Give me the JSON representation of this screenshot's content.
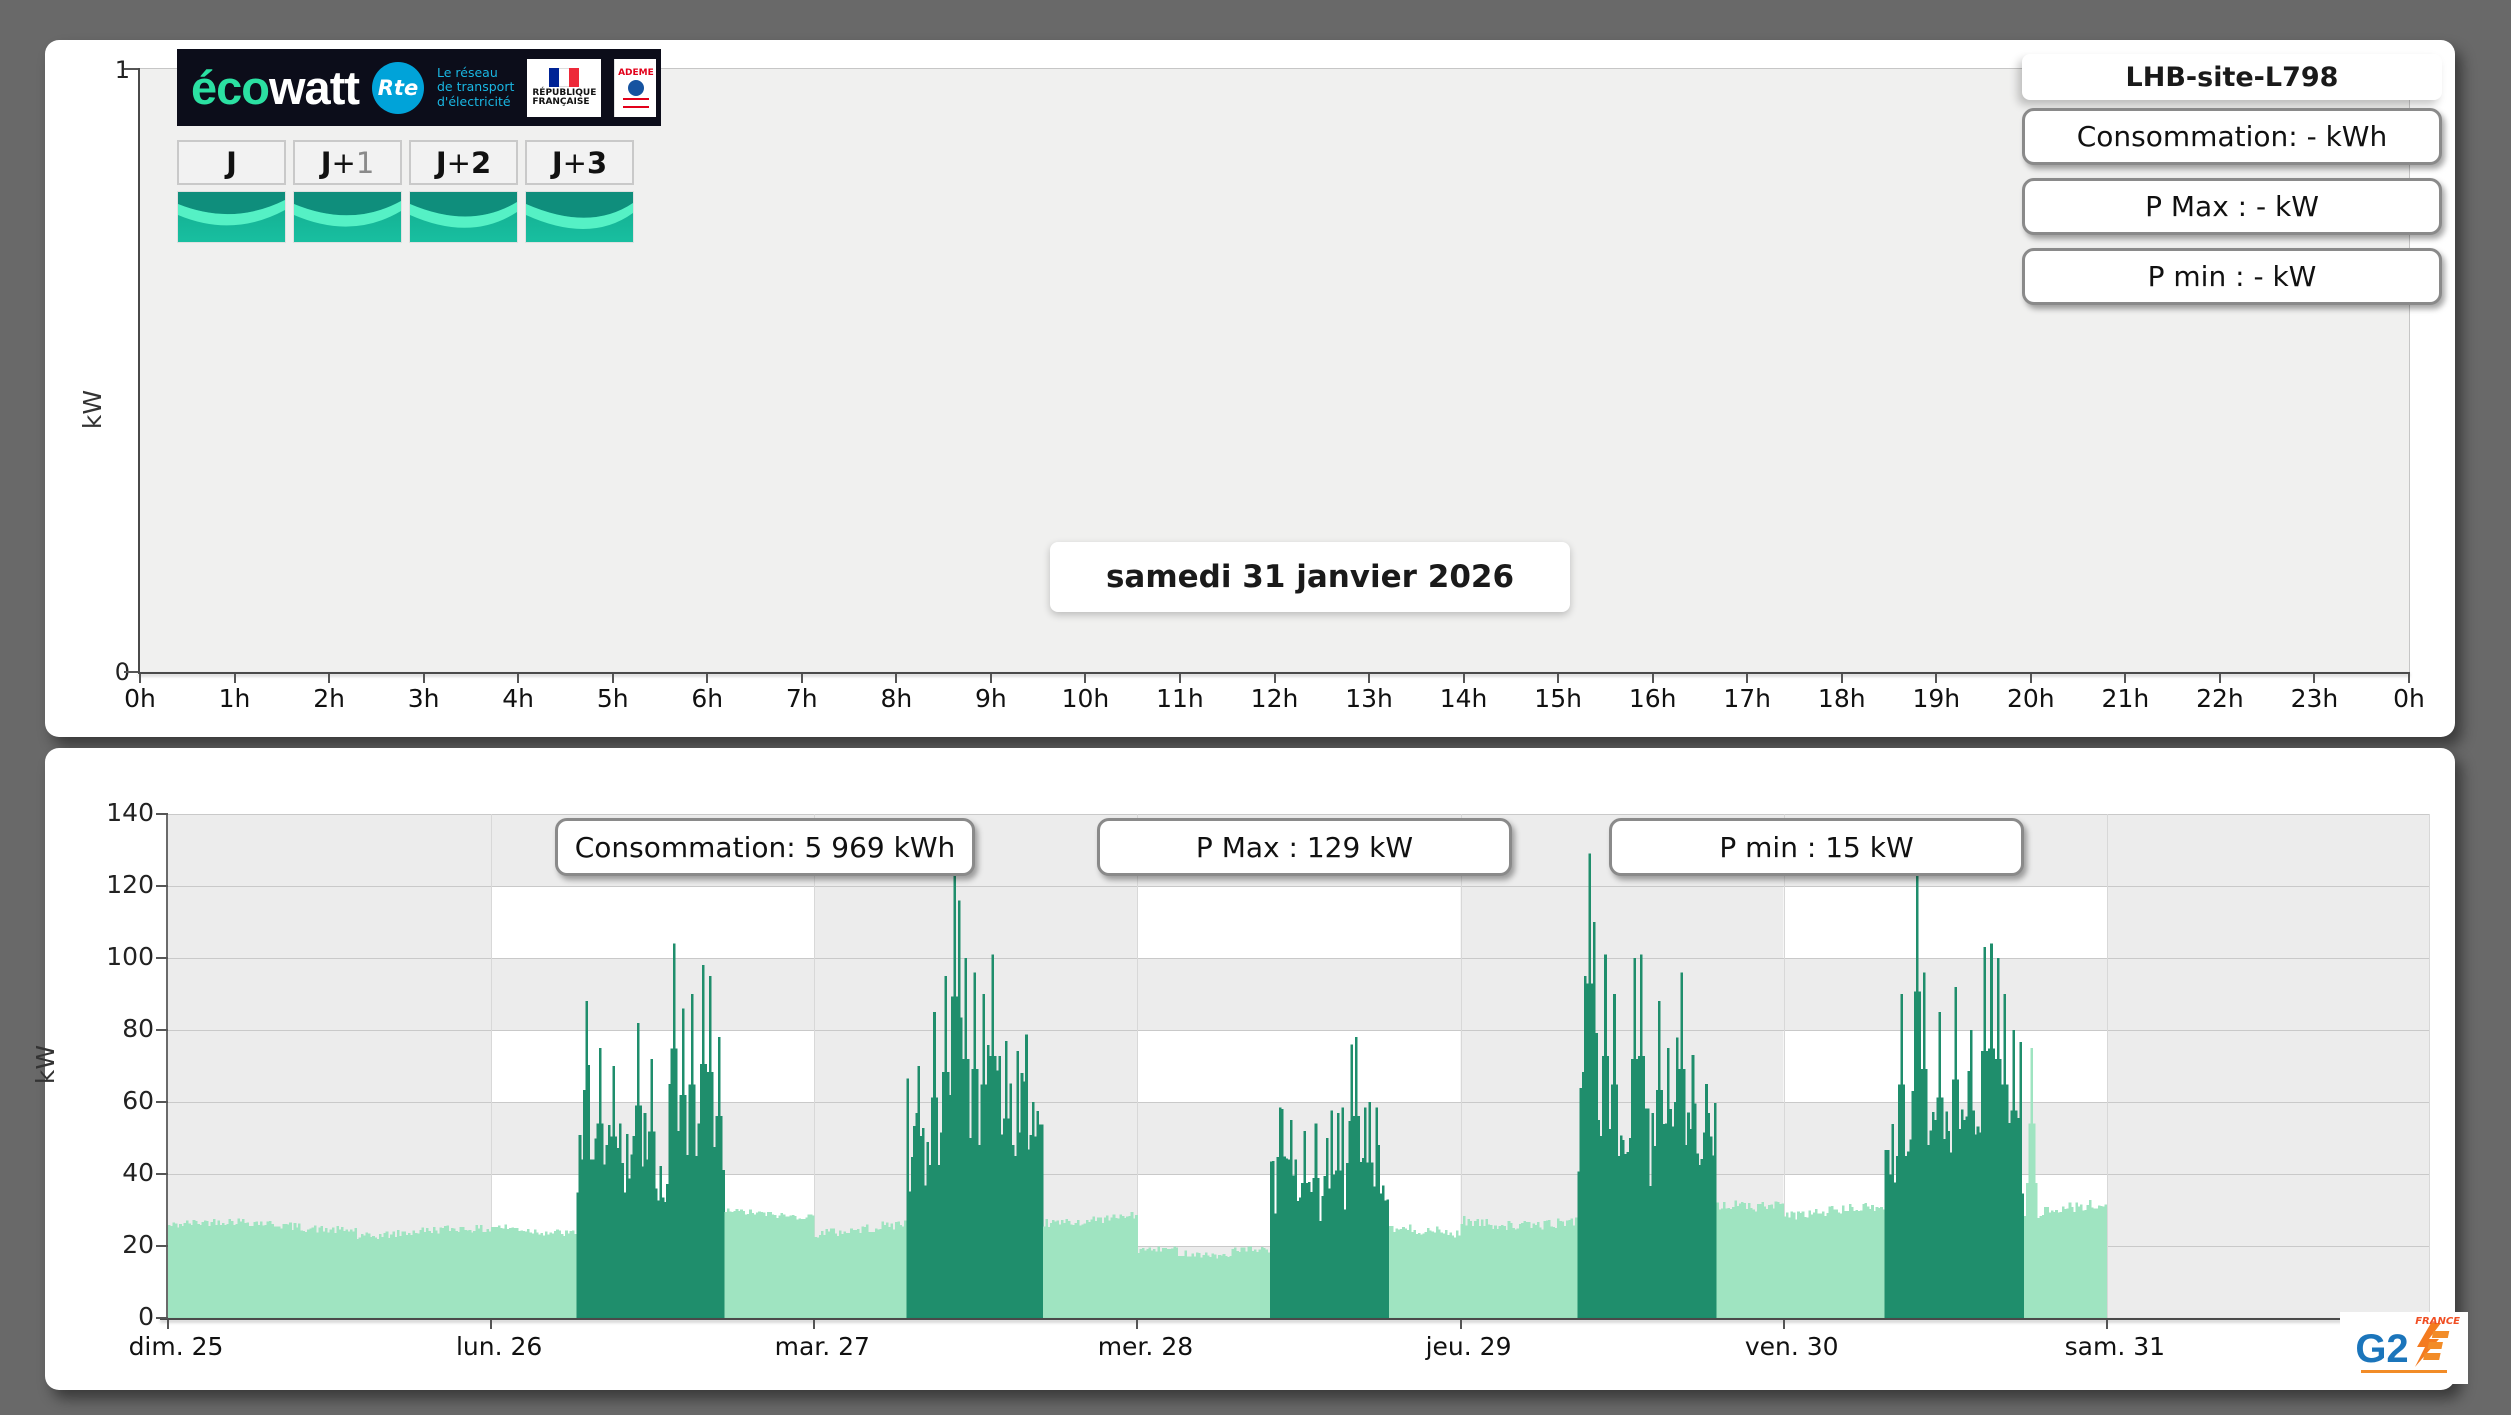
{
  "page": {
    "background": "#696969"
  },
  "top_chart": {
    "site_title": "LHB-site-L798",
    "stats": [
      "Consommation: - kWh",
      "P Max :  - kW",
      "P min : - kW"
    ],
    "date_label": "samedi 31 janvier 2026",
    "ylabel": "kW",
    "ytick_top": "1",
    "ytick_bottom": "0",
    "xticks": [
      "0h",
      "1h",
      "2h",
      "3h",
      "4h",
      "5h",
      "6h",
      "7h",
      "8h",
      "9h",
      "10h",
      "11h",
      "12h",
      "13h",
      "14h",
      "15h",
      "16h",
      "17h",
      "18h",
      "19h",
      "20h",
      "21h",
      "22h",
      "23h",
      "0h"
    ],
    "day_buttons": [
      {
        "prefix": "J",
        "plus": "",
        "num": "",
        "muted": false
      },
      {
        "prefix": "J",
        "plus": " + ",
        "num": "1",
        "muted": true
      },
      {
        "prefix": "J",
        "plus": " + ",
        "num": "2",
        "muted": false
      },
      {
        "prefix": "J",
        "plus": " + ",
        "num": "3",
        "muted": false
      }
    ],
    "logo": {
      "eco": "éco",
      "watt": "watt",
      "rte": "Rte",
      "tagline": [
        "Le réseau",
        "de transport",
        "d'électricité"
      ],
      "republique": [
        "RÉPUBLIQUE",
        "FRANÇAISE"
      ],
      "ademe": "ADEME"
    },
    "chart_data": {
      "type": "bar",
      "series": [],
      "title": "samedi 31 janvier 2026",
      "xlabel": "",
      "ylabel": "kW",
      "ylim": [
        0,
        1
      ],
      "yticks": [
        0,
        1
      ],
      "note_no_data": true
    }
  },
  "bottom_chart": {
    "stats": [
      "Consommation: 5 969 kWh",
      "P Max :  129 kW",
      "P min : 15 kW"
    ],
    "ylabel": "kW",
    "chart_data": {
      "type": "bar",
      "title": "",
      "xlabel": "",
      "ylabel": "kW",
      "ylim": [
        0,
        140
      ],
      "yticks": [
        0,
        20,
        40,
        60,
        80,
        100,
        120,
        140
      ],
      "x_day_labels": [
        "dim. 25",
        "lun. 26",
        "mar. 27",
        "mer. 28",
        "jeu. 29",
        "ven. 30",
        "sam. 31"
      ],
      "days_total": 7,
      "days_with_data": 6,
      "bar_minutes": 10,
      "seed": 42,
      "summary": {
        "consumption_kwh": "5 969",
        "p_max_kw": 129,
        "p_min_kw": 15
      },
      "colors": {
        "base": "#9fe4c1",
        "active": "#1f8e6c",
        "bg_gray": "#ececec",
        "bg_white": "#ffffff",
        "gridline": "#c9c9c9",
        "dayline": "#d8d8d8"
      },
      "plot_bg": {
        "white_cell_columns": [
          1,
          3,
          5
        ],
        "white_cell_bands": [
          1,
          3,
          5
        ]
      },
      "days": [
        {
          "label": "dim. 25",
          "segments": [
            [
              0,
              14,
              23,
              28,
              "base"
            ],
            [
              14,
              24,
              21,
              26,
              "base"
            ]
          ],
          "spikes": []
        },
        {
          "label": "lun. 26",
          "segments": [
            [
              0,
              6.2,
              22,
              27,
              "base"
            ],
            [
              6.2,
              17.3,
              30,
              55,
              "active"
            ],
            [
              17.3,
              24,
              27,
              31,
              "base"
            ]
          ],
          "spikes": [
            [
              7.0,
              88
            ],
            [
              8.0,
              75
            ],
            [
              9.0,
              70
            ],
            [
              10.8,
              82
            ],
            [
              11.8,
              72
            ],
            [
              13.5,
              104
            ],
            [
              14.1,
              86
            ],
            [
              14.8,
              90
            ],
            [
              15.6,
              98
            ],
            [
              16.2,
              95
            ],
            [
              16.8,
              78
            ]
          ]
        },
        {
          "label": "mar. 27",
          "segments": [
            [
              0,
              6.8,
              22,
              28,
              "base"
            ],
            [
              6.8,
              16.9,
              32,
              58,
              "active"
            ],
            [
              16.9,
              24,
              25,
              30,
              "base"
            ]
          ],
          "spikes": [
            [
              7.6,
              70
            ],
            [
              8.8,
              85
            ],
            [
              9.6,
              95
            ],
            [
              10.3,
              124
            ],
            [
              10.6,
              116
            ],
            [
              11.2,
              100
            ],
            [
              11.9,
              96
            ],
            [
              12.5,
              90
            ],
            [
              13.1,
              101
            ],
            [
              14.1,
              77
            ],
            [
              15.3,
              68
            ],
            [
              16.2,
              60
            ]
          ]
        },
        {
          "label": "mer. 28",
          "segments": [
            [
              0,
              3,
              16,
              20,
              "base"
            ],
            [
              3,
              7,
              15,
              19,
              "base"
            ],
            [
              7,
              9.7,
              17,
              22,
              "base"
            ],
            [
              9.7,
              18.6,
              25,
              45,
              "active"
            ],
            [
              18.6,
              24,
              20,
              26,
              "base"
            ]
          ],
          "spikes": [
            [
              10.6,
              58
            ],
            [
              11.4,
              55
            ],
            [
              12.3,
              52
            ],
            [
              13.2,
              54
            ],
            [
              14.0,
              50
            ],
            [
              14.9,
              57
            ],
            [
              15.8,
              76
            ],
            [
              16.2,
              78
            ],
            [
              17.1,
              60
            ],
            [
              17.8,
              48
            ]
          ]
        },
        {
          "label": "jeu. 29",
          "segments": [
            [
              0,
              8.6,
              24,
              30,
              "base"
            ],
            [
              8.6,
              19.0,
              33,
              60,
              "active"
            ],
            [
              19.0,
              24,
              29,
              36,
              "base"
            ]
          ],
          "spikes": [
            [
              9.1,
              95
            ],
            [
              9.45,
              129
            ],
            [
              9.9,
              110
            ],
            [
              10.6,
              101
            ],
            [
              11.4,
              90
            ],
            [
              12.8,
              100
            ],
            [
              13.3,
              101
            ],
            [
              14.6,
              88
            ],
            [
              15.3,
              75
            ],
            [
              16.4,
              96
            ],
            [
              17.2,
              73
            ],
            [
              18.2,
              65
            ]
          ]
        },
        {
          "label": "ven. 30",
          "segments": [
            [
              0,
              7.4,
              26,
              32,
              "base"
            ],
            [
              7.4,
              17.8,
              33,
              58,
              "active"
            ],
            [
              17.8,
              24,
              26,
              33,
              "base"
            ]
          ],
          "spikes": [
            [
              8.6,
              90
            ],
            [
              9.75,
              126
            ],
            [
              10.3,
              96
            ],
            [
              11.5,
              85
            ],
            [
              12.6,
              92
            ],
            [
              13.8,
              80
            ],
            [
              14.9,
              103
            ],
            [
              15.4,
              104
            ],
            [
              15.9,
              100
            ],
            [
              16.3,
              90
            ],
            [
              17.0,
              80
            ],
            [
              18.3,
              75,
              "base"
            ]
          ]
        },
        {
          "label": "sam. 31",
          "segments": [],
          "spikes": []
        }
      ]
    }
  },
  "footer_logo": {
    "g2": "G2",
    "france": "FRANCE"
  }
}
